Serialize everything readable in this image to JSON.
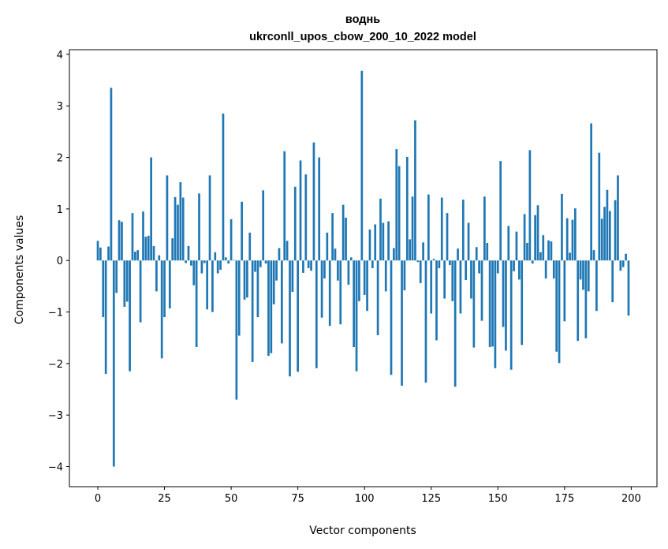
{
  "chart_data": {
    "type": "bar",
    "title_line1": "воднь",
    "title_line2": "ukrconll_upos_cbow_200_10_2022 model",
    "xlabel": "Vector components",
    "ylabel": "Components values",
    "xlim": [
      -10.65,
      209.65
    ],
    "ylim": [
      -4.39,
      4.09
    ],
    "xticks": [
      0,
      25,
      50,
      75,
      100,
      125,
      150,
      175,
      200
    ],
    "yticks": [
      -4,
      -3,
      -2,
      -1,
      0,
      1,
      2,
      3,
      4
    ],
    "ytick_labels": [
      "−4",
      "−3",
      "−2",
      "−1",
      "0",
      "1",
      "2",
      "3",
      "4"
    ],
    "bar_color": "#1f77b4",
    "bar_width": 0.8,
    "grid": false,
    "values": [
      0.38,
      0.25,
      -1.1,
      -2.2,
      0.27,
      3.35,
      -4.0,
      -0.63,
      0.78,
      0.75,
      -0.9,
      -0.8,
      -2.15,
      0.92,
      0.17,
      0.2,
      -1.2,
      0.95,
      0.46,
      0.48,
      2.0,
      0.28,
      -0.6,
      0.1,
      -1.9,
      -1.1,
      1.65,
      -0.93,
      0.43,
      1.23,
      1.08,
      1.52,
      1.22,
      -0.05,
      0.28,
      -0.1,
      -0.48,
      -1.68,
      1.3,
      -0.25,
      -0.05,
      -0.95,
      1.65,
      -1.0,
      0.16,
      -0.25,
      -0.18,
      2.85,
      0.06,
      -0.06,
      0.8,
      0.01,
      -2.7,
      -1.46,
      1.14,
      -0.76,
      -0.72,
      0.54,
      -1.97,
      -0.22,
      -1.1,
      -0.13,
      1.36,
      -0.06,
      -1.85,
      -1.8,
      -0.85,
      -0.39,
      0.24,
      -1.61,
      2.12,
      0.38,
      -2.25,
      -0.61,
      1.43,
      -2.16,
      1.94,
      -0.24,
      1.67,
      -0.15,
      -0.2,
      2.29,
      -2.09,
      2.0,
      -1.11,
      -0.35,
      0.54,
      -1.27,
      0.92,
      0.23,
      -0.39,
      -1.24,
      1.08,
      0.83,
      -0.47,
      0.06,
      -1.68,
      -2.15,
      -0.79,
      3.68,
      -0.67,
      -0.98,
      0.6,
      -0.15,
      0.7,
      -1.45,
      1.2,
      0.73,
      -0.6,
      0.76,
      -2.22,
      0.24,
      2.16,
      1.83,
      -2.43,
      -0.58,
      2.01,
      0.41,
      1.24,
      2.72,
      -0.03,
      -0.44,
      0.35,
      -2.37,
      1.28,
      -1.03,
      0.03,
      -1.55,
      -0.15,
      1.22,
      -0.74,
      0.92,
      -0.09,
      -0.79,
      -2.45,
      0.23,
      -1.03,
      1.18,
      -0.38,
      0.73,
      -0.74,
      -1.69,
      0.26,
      -0.25,
      -1.17,
      1.24,
      0.34,
      -1.68,
      -1.67,
      -2.09,
      -0.25,
      1.93,
      -1.29,
      -1.75,
      0.67,
      -2.12,
      -0.21,
      0.56,
      -0.37,
      -1.64,
      0.9,
      0.34,
      2.14,
      -0.06,
      0.88,
      1.07,
      0.16,
      0.49,
      -0.35,
      0.39,
      0.37,
      -0.35,
      -1.77,
      -1.99,
      1.29,
      -1.18,
      0.82,
      0.15,
      0.79,
      1.01,
      -1.56,
      -0.37,
      -0.57,
      -1.51,
      -0.6,
      2.66,
      0.2,
      -0.98,
      2.09,
      0.81,
      1.04,
      1.37,
      0.96,
      -0.81,
      1.17,
      1.65,
      -0.2,
      -0.13,
      0.13,
      -1.07
    ]
  }
}
